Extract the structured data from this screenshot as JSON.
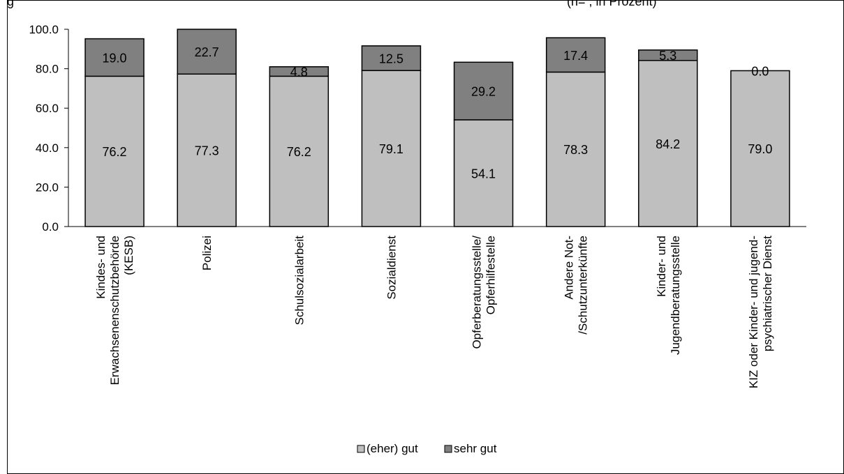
{
  "caption": {
    "left": "g",
    "right": "(n= , in Prozent)"
  },
  "chart_data": {
    "type": "bar",
    "stacked": true,
    "categories": [
      [
        "Kindes- und",
        "Erwachsenenschutzbehörde",
        "(KESB)"
      ],
      [
        "Polizei"
      ],
      [
        "Schulsozialarbeit"
      ],
      [
        "Sozialdienst"
      ],
      [
        "Opferberatungsstelle/",
        "Opferhilfestelle"
      ],
      [
        "Andere Not-",
        "/Schutzunterkünfte"
      ],
      [
        "Kinder- und",
        "Jugendberatungsstelle"
      ],
      [
        "KIZ oder Kinder- und jugend-",
        "psychiatrischer Dienst"
      ]
    ],
    "series": [
      {
        "name": "(eher) gut",
        "color": "#bfbfbf",
        "values": [
          76.2,
          77.3,
          76.2,
          79.1,
          54.1,
          78.3,
          84.2,
          79.0
        ],
        "labels": [
          "76.2",
          "77.3",
          "76.2",
          "79.1",
          "54.1",
          "78.3",
          "84.2",
          "79.0"
        ]
      },
      {
        "name": "sehr gut",
        "color": "#808080",
        "values": [
          19.0,
          22.7,
          4.8,
          12.5,
          29.2,
          17.4,
          5.3,
          0.0
        ],
        "labels": [
          "19.0",
          "22.7",
          "4.8",
          "12.5",
          "29.2",
          "17.4",
          "5.3",
          "0.0"
        ]
      }
    ],
    "yticks": [
      "0.0",
      "20.0",
      "40.0",
      "60.0",
      "80.0",
      "100.0"
    ],
    "ylim": [
      0,
      100
    ],
    "grid": false,
    "legend": "bottom",
    "xlabel": "",
    "ylabel": ""
  }
}
